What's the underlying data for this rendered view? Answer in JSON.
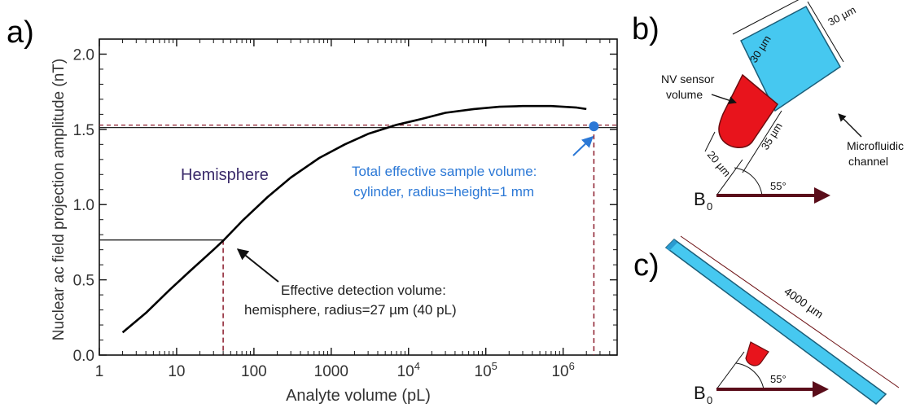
{
  "panels": {
    "a": {
      "label": "a)"
    },
    "b": {
      "label": "b)",
      "dim_top_left": "30 µm",
      "dim_top_right": "30 µm",
      "dim_lower_left": "20 µm",
      "dim_lower_right": "35 µm",
      "sensor_label_line1": "NV sensor",
      "sensor_label_line2": "volume",
      "channel_label_line1": "Microfluidic",
      "channel_label_line2": "channel",
      "angle": "55°",
      "field_label": "B",
      "field_subscript": "0"
    },
    "c": {
      "label": "c)",
      "length_label": "4000 µm",
      "angle": "55°",
      "field_label": "B",
      "field_subscript": "0"
    }
  },
  "colors": {
    "curve": "#000000",
    "reference_lines": "#8b1a2b",
    "highlight": "#2b78d6",
    "annotation_text": "#2b78d6",
    "hemisphere_text": "#3a2a6a",
    "sensor_fill": "#e8141c",
    "channel_fill": "#46c8f0",
    "arrow": "#5a0d1a"
  },
  "chart_data": {
    "type": "line",
    "xlabel": "Analyte volume (pL)",
    "ylabel": "Nuclear ac field projection amplitude (nT)",
    "xscale": "log",
    "xlim": [
      1,
      5000000
    ],
    "ylim": [
      0,
      2.1
    ],
    "x_ticks": [
      {
        "value": 1,
        "base": "1",
        "exp": ""
      },
      {
        "value": 10,
        "base": "10",
        "exp": ""
      },
      {
        "value": 100,
        "base": "100",
        "exp": ""
      },
      {
        "value": 1000,
        "base": "1000",
        "exp": ""
      },
      {
        "value": 10000,
        "base": "10",
        "exp": "4"
      },
      {
        "value": 100000,
        "base": "10",
        "exp": "5"
      },
      {
        "value": 1000000,
        "base": "10",
        "exp": "6"
      }
    ],
    "y_ticks": [
      {
        "value": 0,
        "label": "0.0"
      },
      {
        "value": 0.5,
        "label": "0.5"
      },
      {
        "value": 1.0,
        "label": "1.0"
      },
      {
        "value": 1.5,
        "label": "1.5"
      },
      {
        "value": 2.0,
        "label": "2.0"
      }
    ],
    "grid": false,
    "series": [
      {
        "x": [
          2,
          4,
          8,
          15,
          30,
          40,
          70,
          150,
          300,
          700,
          1500,
          3000,
          7000,
          15000,
          30000,
          70000,
          150000,
          300000,
          700000,
          1500000,
          2000000
        ],
        "y": [
          0.15,
          0.28,
          0.43,
          0.56,
          0.7,
          0.76,
          0.89,
          1.05,
          1.18,
          1.31,
          1.4,
          1.47,
          1.53,
          1.57,
          1.61,
          1.635,
          1.65,
          1.655,
          1.655,
          1.645,
          1.635
        ]
      }
    ],
    "reference_lines": [
      {
        "kind": "horizontal",
        "y": 1.52,
        "style": "dashed-double"
      },
      {
        "kind": "horizontal",
        "y": 0.765,
        "x_to": 40
      },
      {
        "kind": "vertical",
        "x": 40,
        "y_to": 0.765,
        "style": "dashed"
      },
      {
        "kind": "vertical",
        "x": 2500000,
        "y_to": 1.52,
        "style": "dashed"
      }
    ],
    "highlight_point": {
      "x": 2500000,
      "y": 1.52
    },
    "annotations": {
      "hemisphere": "Hemisphere",
      "total_line1": "Total effective sample volume:",
      "total_line2": "cylinder, radius=height=1 mm",
      "effective_line1": "Effective detection volume:",
      "effective_line2": "hemisphere, radius=27 µm (40 pL)"
    }
  }
}
